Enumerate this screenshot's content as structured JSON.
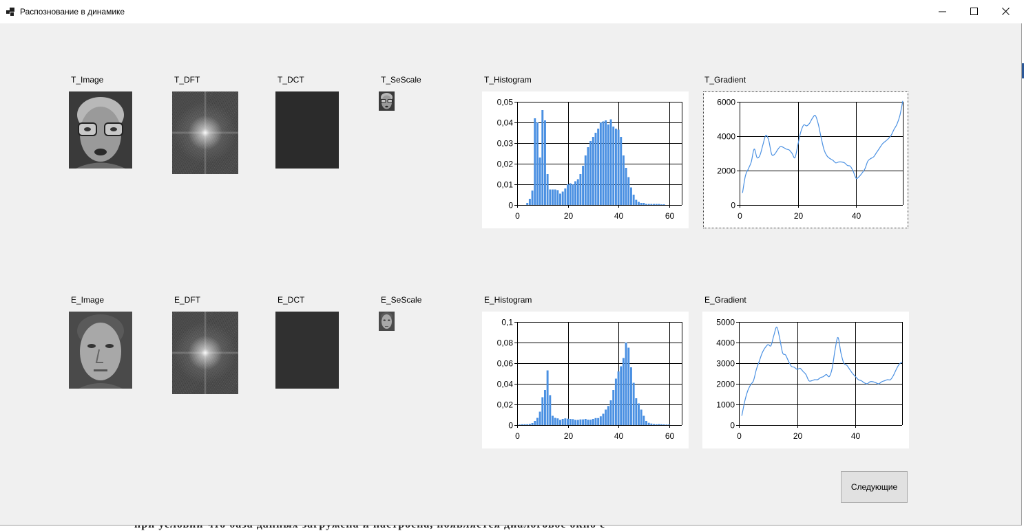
{
  "window": {
    "title": "Распознование в динамике",
    "minimize_icon": "minimize-icon",
    "maximize_icon": "maximize-icon",
    "close_icon": "close-icon"
  },
  "rows": {
    "t": {
      "image_label": "T_Image",
      "dft_label": "T_DFT",
      "dct_label": "T_DCT",
      "sescale_label": "T_SeScale",
      "histogram_label": "T_Histogram",
      "gradient_label": "T_Gradient"
    },
    "e": {
      "image_label": "E_Image",
      "dft_label": "E_DFT",
      "dct_label": "E_DCT",
      "sescale_label": "E_SeScale",
      "histogram_label": "E_Histogram",
      "gradient_label": "E_Gradient"
    }
  },
  "buttons": {
    "next": "Следующие"
  },
  "background_text": "при условии что база данных загружена и настроена, появляется диалоговое окно с",
  "colors": {
    "series": "#4a90e2",
    "dct_t": "#2b2b2b",
    "dct_e": "#303030"
  },
  "chart_data": [
    {
      "id": "t_histogram",
      "type": "bar",
      "x": [
        4,
        5,
        6,
        7,
        8,
        9,
        10,
        11,
        12,
        13,
        14,
        15,
        16,
        17,
        18,
        19,
        20,
        21,
        22,
        23,
        24,
        25,
        26,
        27,
        28,
        29,
        30,
        31,
        32,
        33,
        34,
        35,
        36,
        37,
        38,
        39,
        40,
        41,
        42,
        43,
        44,
        45,
        46,
        47,
        48,
        49,
        50,
        51,
        52,
        53,
        54,
        55,
        56,
        57,
        58
      ],
      "values": [
        0.001,
        0.003,
        0.007,
        0.042,
        0.04,
        0.023,
        0.046,
        0.041,
        0.015,
        0.0075,
        0.0075,
        0.0075,
        0.0072,
        0.0055,
        0.0065,
        0.008,
        0.01,
        0.0105,
        0.01,
        0.0115,
        0.0125,
        0.015,
        0.019,
        0.024,
        0.028,
        0.031,
        0.033,
        0.035,
        0.037,
        0.04,
        0.0405,
        0.041,
        0.039,
        0.0415,
        0.038,
        0.037,
        0.0365,
        0.033,
        0.024,
        0.018,
        0.0135,
        0.0085,
        0.005,
        0.0025,
        0.0015,
        0.001,
        0.001,
        0.0005,
        0.0005,
        0.0005,
        0.0005,
        0.0005,
        0.0005,
        0.0003,
        0.0003
      ],
      "xlim": [
        0,
        65
      ],
      "ylim": [
        0,
        0.05
      ],
      "xticks": [
        0,
        20,
        40,
        60
      ],
      "xtick_labels": [
        "0",
        "20",
        "40",
        "60"
      ],
      "yticks": [
        0,
        0.01,
        0.02,
        0.03,
        0.04,
        0.05
      ],
      "ytick_labels": [
        "0",
        "0,01",
        "0,02",
        "0,03",
        "0,04",
        "0,05"
      ],
      "grid": true
    },
    {
      "id": "t_gradient",
      "type": "line",
      "x": [
        1,
        2,
        3,
        4,
        5,
        6,
        7,
        8,
        9,
        10,
        11,
        12,
        13,
        14,
        15,
        16,
        17,
        18,
        19,
        20,
        21,
        22,
        23,
        24,
        25,
        26,
        27,
        28,
        29,
        30,
        31,
        32,
        33,
        34,
        35,
        36,
        37,
        38,
        39,
        40,
        41,
        42,
        43,
        44,
        45,
        46,
        47,
        48,
        49,
        50,
        51,
        52,
        53,
        54,
        55,
        56
      ],
      "values": [
        700,
        1700,
        2100,
        2500,
        3250,
        2750,
        2900,
        3500,
        4050,
        3750,
        2950,
        2950,
        3200,
        3400,
        3350,
        3250,
        3200,
        3000,
        2750,
        3500,
        4250,
        4650,
        4600,
        4750,
        5050,
        5200,
        4700,
        3900,
        3200,
        2850,
        2700,
        2600,
        2450,
        2500,
        2500,
        2450,
        2300,
        2250,
        1950,
        1550,
        1650,
        1850,
        2100,
        2550,
        2700,
        2800,
        3050,
        3300,
        3550,
        3700,
        3850,
        4050,
        4400,
        4700,
        5200,
        6050
      ],
      "xlim": [
        0,
        56
      ],
      "ylim": [
        0,
        6000
      ],
      "xticks": [
        0,
        20,
        40
      ],
      "xtick_labels": [
        "0",
        "20",
        "40"
      ],
      "yticks": [
        0,
        2000,
        4000,
        6000
      ],
      "ytick_labels": [
        "0",
        "2000",
        "4000",
        "6000"
      ],
      "grid": true
    },
    {
      "id": "e_histogram",
      "type": "bar",
      "x": [
        1,
        2,
        3,
        4,
        5,
        6,
        7,
        8,
        9,
        10,
        11,
        12,
        13,
        14,
        15,
        16,
        17,
        18,
        19,
        20,
        21,
        22,
        23,
        24,
        25,
        26,
        27,
        28,
        29,
        30,
        31,
        32,
        33,
        34,
        35,
        36,
        37,
        38,
        39,
        40,
        41,
        42,
        43,
        44,
        45,
        46,
        47,
        48,
        49,
        50,
        51,
        52,
        53,
        54,
        55,
        56,
        57,
        58,
        59,
        60
      ],
      "values": [
        0.0005,
        0.0008,
        0.0008,
        0.0008,
        0.0012,
        0.002,
        0.004,
        0.007,
        0.013,
        0.027,
        0.034,
        0.053,
        0.029,
        0.009,
        0.007,
        0.0065,
        0.005,
        0.006,
        0.0065,
        0.0062,
        0.006,
        0.0058,
        0.005,
        0.005,
        0.0055,
        0.0055,
        0.006,
        0.0052,
        0.0052,
        0.006,
        0.0068,
        0.0068,
        0.0085,
        0.011,
        0.015,
        0.0185,
        0.024,
        0.034,
        0.045,
        0.052,
        0.057,
        0.065,
        0.08,
        0.075,
        0.056,
        0.041,
        0.026,
        0.021,
        0.015,
        0.009,
        0.004,
        0.0022,
        0.0015,
        0.001,
        0.0008,
        0.001,
        0.0008,
        0.0006,
        0.0005,
        0.0005
      ],
      "xlim": [
        0,
        65
      ],
      "ylim": [
        0,
        0.1
      ],
      "xticks": [
        0,
        20,
        40,
        60
      ],
      "xtick_labels": [
        "0",
        "20",
        "40",
        "60"
      ],
      "yticks": [
        0,
        0.02,
        0.04,
        0.06,
        0.08,
        0.1
      ],
      "ytick_labels": [
        "0",
        "0,02",
        "0,04",
        "0,06",
        "0,08",
        "0,1"
      ],
      "grid": true
    },
    {
      "id": "e_gradient",
      "type": "line",
      "x": [
        1,
        2,
        3,
        4,
        5,
        6,
        7,
        8,
        9,
        10,
        11,
        12,
        13,
        14,
        15,
        16,
        17,
        18,
        19,
        20,
        21,
        22,
        23,
        24,
        25,
        26,
        27,
        28,
        29,
        30,
        31,
        32,
        33,
        34,
        35,
        36,
        37,
        38,
        39,
        40,
        41,
        42,
        43,
        44,
        45,
        46,
        47,
        48,
        49,
        50,
        51,
        52,
        53,
        54,
        55,
        56
      ],
      "values": [
        450,
        1150,
        1650,
        1950,
        2150,
        2700,
        3100,
        3500,
        3750,
        3900,
        3850,
        4350,
        4750,
        4200,
        3500,
        3400,
        3100,
        2850,
        2800,
        2700,
        2750,
        2600,
        2450,
        2150,
        2150,
        2200,
        2200,
        2300,
        2350,
        2450,
        2350,
        2750,
        3650,
        4250,
        3500,
        3000,
        2900,
        2700,
        2500,
        2350,
        2200,
        2150,
        2050,
        2000,
        2100,
        2100,
        2050,
        2000,
        2100,
        2150,
        2200,
        2200,
        2400,
        2700,
        2950,
        3050
      ],
      "xlim": [
        0,
        56
      ],
      "ylim": [
        0,
        5000
      ],
      "xticks": [
        0,
        20,
        40
      ],
      "xtick_labels": [
        "0",
        "20",
        "40"
      ],
      "yticks": [
        0,
        1000,
        2000,
        3000,
        4000,
        5000
      ],
      "ytick_labels": [
        "0",
        "1000",
        "2000",
        "3000",
        "4000",
        "5000"
      ],
      "grid": true
    }
  ]
}
